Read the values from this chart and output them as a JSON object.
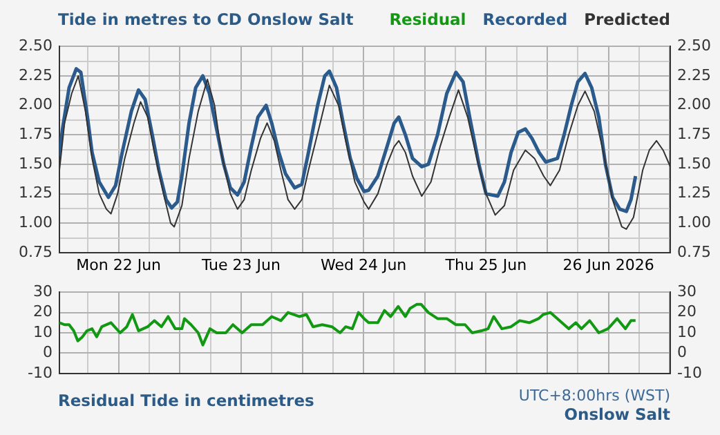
{
  "chart_data": [
    {
      "type": "line",
      "title": "Tide in metres to CD Onslow Salt",
      "legend": "top right",
      "grid": true,
      "marker": "none",
      "xlim": [
        "2026-06-22T00:24",
        "2026-06-27T00:06"
      ],
      "xticks": [
        {
          "value": "2026-06-22T06:00",
          "label": null
        },
        {
          "value": "2026-06-22T12:00",
          "label": "Mon 22 Jun"
        },
        {
          "value": "2026-06-22T18:00",
          "label": null
        },
        {
          "value": "2026-06-23T00:00",
          "label": null
        },
        {
          "value": "2026-06-23T06:00",
          "label": null
        },
        {
          "value": "2026-06-23T12:00",
          "label": "Tue 23 Jun"
        },
        {
          "value": "2026-06-23T18:00",
          "label": null
        },
        {
          "value": "2026-06-24T00:00",
          "label": null
        },
        {
          "value": "2026-06-24T06:00",
          "label": null
        },
        {
          "value": "2026-06-24T12:00",
          "label": "Wed 24 Jun"
        },
        {
          "value": "2026-06-24T18:00",
          "label": null
        },
        {
          "value": "2026-06-25T00:00",
          "label": null
        },
        {
          "value": "2026-06-25T06:00",
          "label": null
        },
        {
          "value": "2026-06-25T12:00",
          "label": "Thu 25 Jun"
        },
        {
          "value": "2026-06-25T18:00",
          "label": null
        },
        {
          "value": "2026-06-26T00:00",
          "label": null
        },
        {
          "value": "2026-06-26T06:00",
          "label": null
        },
        {
          "value": "2026-06-26T12:00",
          "label": "26 Jun 2026"
        },
        {
          "value": "2026-06-26T18:00",
          "label": null
        },
        {
          "value": "2026-06-27T00:00",
          "label": null
        }
      ],
      "ylim": [
        0.75,
        2.5
      ],
      "yticks": [
        0.75,
        {
          "value": 0.875,
          "label": null
        },
        {
          "value": 1,
          "label": "1.00"
        },
        {
          "value": 1.125,
          "label": null
        },
        1.25,
        {
          "value": 1.375,
          "label": null
        },
        {
          "value": 1.5,
          "label": "1.50"
        },
        {
          "value": 1.625,
          "label": null
        },
        1.75,
        {
          "value": 1.875,
          "label": null
        },
        {
          "value": 2,
          "label": "2.00"
        },
        {
          "value": 2.125,
          "label": null
        },
        2.25,
        {
          "value": 2.375,
          "label": null
        },
        {
          "value": 2.5,
          "label": "2.50"
        }
      ],
      "y2lim": [
        0.75,
        2.5
      ],
      "y2ticks": [
        0.75,
        {
          "value": 1,
          "label": "1.00"
        },
        1.25,
        {
          "value": 1.5,
          "label": "1.50"
        },
        1.75,
        {
          "value": 2,
          "label": "2.00"
        },
        2.25,
        {
          "value": 2.5,
          "label": "2.50"
        }
      ],
      "series": [
        {
          "name": "Recorded",
          "color": "#2b5a8c",
          "x": [
            "2026-06-22T00:24",
            "2026-06-22T01:00",
            "2026-06-22T02:18",
            "2026-06-22T03:42",
            "2026-06-22T04:36",
            "2026-06-22T05:54",
            "2026-06-22T06:48",
            "2026-06-22T08:12",
            "2026-06-22T10:00",
            "2026-06-22T11:24",
            "2026-06-22T12:42",
            "2026-06-22T14:30",
            "2026-06-22T15:54",
            "2026-06-22T17:12",
            "2026-06-22T18:36",
            "2026-06-22T19:54",
            "2026-06-22T21:18",
            "2026-06-22T22:24",
            "2026-06-22T23:30",
            "2026-06-23T00:24",
            "2026-06-23T01:48",
            "2026-06-23T03:06",
            "2026-06-23T04:30",
            "2026-06-23T05:48",
            "2026-06-23T07:12",
            "2026-06-23T08:36",
            "2026-06-23T09:54",
            "2026-06-23T11:18",
            "2026-06-23T12:36",
            "2026-06-23T14:00",
            "2026-06-23T15:18",
            "2026-06-23T16:54",
            "2026-06-23T18:00",
            "2026-06-23T19:24",
            "2026-06-23T20:42",
            "2026-06-23T22:30",
            "2026-06-23T23:54",
            "2026-06-24T01:12",
            "2026-06-24T03:00",
            "2026-06-24T04:24",
            "2026-06-24T05:18",
            "2026-06-24T06:42",
            "2026-06-24T08:00",
            "2026-06-24T09:24",
            "2026-06-24T10:42",
            "2026-06-24T12:06",
            "2026-06-24T13:00",
            "2026-06-24T14:48",
            "2026-06-24T16:36",
            "2026-06-24T18:00",
            "2026-06-24T18:54",
            "2026-06-24T20:12",
            "2026-06-24T21:36",
            "2026-06-24T23:24",
            "2026-06-25T00:42",
            "2026-06-25T02:30",
            "2026-06-25T04:18",
            "2026-06-25T06:06",
            "2026-06-25T07:30",
            "2026-06-25T08:48",
            "2026-06-25T10:36",
            "2026-06-25T12:00",
            "2026-06-25T14:18",
            "2026-06-25T15:36",
            "2026-06-25T16:54",
            "2026-06-25T18:18",
            "2026-06-25T19:42",
            "2026-06-25T21:00",
            "2026-06-25T22:24",
            "2026-06-25T23:42",
            "2026-06-26T02:00",
            "2026-06-26T03:18",
            "2026-06-26T04:42",
            "2026-06-26T06:00",
            "2026-06-26T07:24",
            "2026-06-26T08:42",
            "2026-06-26T10:06",
            "2026-06-26T11:24",
            "2026-06-26T12:48",
            "2026-06-26T14:12",
            "2026-06-26T15:30",
            "2026-06-26T16:24",
            "2026-06-26T17:18"
          ],
          "values": [
            1.57,
            1.8,
            2.15,
            2.31,
            2.28,
            1.9,
            1.6,
            1.35,
            1.22,
            1.32,
            1.6,
            1.95,
            2.13,
            2.05,
            1.75,
            1.45,
            1.2,
            1.13,
            1.18,
            1.4,
            1.85,
            2.15,
            2.25,
            2.1,
            1.8,
            1.5,
            1.3,
            1.24,
            1.35,
            1.65,
            1.9,
            2.0,
            1.85,
            1.6,
            1.42,
            1.3,
            1.33,
            1.6,
            2.0,
            2.25,
            2.29,
            2.15,
            1.85,
            1.55,
            1.38,
            1.27,
            1.28,
            1.4,
            1.65,
            1.85,
            1.9,
            1.75,
            1.55,
            1.48,
            1.5,
            1.75,
            2.1,
            2.28,
            2.2,
            1.9,
            1.5,
            1.25,
            1.23,
            1.35,
            1.6,
            1.77,
            1.8,
            1.72,
            1.6,
            1.52,
            1.55,
            1.75,
            2.0,
            2.2,
            2.27,
            2.15,
            1.9,
            1.5,
            1.22,
            1.12,
            1.1,
            1.2,
            1.4
          ]
        },
        {
          "name": "Predicted",
          "color": "#333333",
          "x": [
            "2026-06-22T00:24",
            "2026-06-22T01:24",
            "2026-06-22T02:48",
            "2026-06-22T04:06",
            "2026-06-22T05:30",
            "2026-06-22T06:48",
            "2026-06-22T08:12",
            "2026-06-22T09:36",
            "2026-06-22T10:30",
            "2026-06-22T11:48",
            "2026-06-22T13:12",
            "2026-06-22T15:00",
            "2026-06-22T16:18",
            "2026-06-22T17:42",
            "2026-06-22T19:00",
            "2026-06-22T20:48",
            "2026-06-22T22:12",
            "2026-06-22T22:54",
            "2026-06-23T00:24",
            "2026-06-23T01:48",
            "2026-06-23T03:36",
            "2026-06-23T05:24",
            "2026-06-23T06:48",
            "2026-06-23T08:06",
            "2026-06-23T09:54",
            "2026-06-23T11:18",
            "2026-06-23T12:36",
            "2026-06-23T14:00",
            "2026-06-23T15:48",
            "2026-06-23T17:06",
            "2026-06-23T18:30",
            "2026-06-23T19:48",
            "2026-06-23T21:12",
            "2026-06-23T22:30",
            "2026-06-23T23:54",
            "2026-06-24T01:12",
            "2026-06-24T03:30",
            "2026-06-24T05:18",
            "2026-06-24T07:06",
            "2026-06-24T08:30",
            "2026-06-24T10:18",
            "2026-06-24T12:06",
            "2026-06-24T13:00",
            "2026-06-24T14:48",
            "2026-06-24T16:36",
            "2026-06-24T18:00",
            "2026-06-24T18:54",
            "2026-06-24T20:12",
            "2026-06-24T21:36",
            "2026-06-24T23:24",
            "2026-06-25T01:12",
            "2026-06-25T03:00",
            "2026-06-25T04:48",
            "2026-06-25T06:36",
            "2026-06-25T08:24",
            "2026-06-25T10:12",
            "2026-06-25T12:00",
            "2026-06-25T13:48",
            "2026-06-25T15:36",
            "2026-06-25T17:24",
            "2026-06-25T19:42",
            "2026-06-25T21:30",
            "2026-06-25T23:18",
            "2026-06-26T00:36",
            "2026-06-26T02:24",
            "2026-06-26T04:12",
            "2026-06-26T06:00",
            "2026-06-26T07:24",
            "2026-06-26T09:12",
            "2026-06-26T11:00",
            "2026-06-26T12:48",
            "2026-06-26T14:36",
            "2026-06-26T15:30",
            "2026-06-26T16:54",
            "2026-06-26T18:42",
            "2026-06-26T20:00",
            "2026-06-26T21:24",
            "2026-06-26T22:42",
            "2026-06-27T00:06"
          ],
          "values": [
            1.45,
            1.85,
            2.1,
            2.25,
            1.95,
            1.55,
            1.25,
            1.12,
            1.08,
            1.25,
            1.55,
            1.85,
            2.03,
            1.9,
            1.6,
            1.25,
            1.0,
            0.97,
            1.15,
            1.55,
            1.95,
            2.22,
            2.0,
            1.6,
            1.25,
            1.12,
            1.2,
            1.45,
            1.72,
            1.85,
            1.7,
            1.45,
            1.2,
            1.12,
            1.2,
            1.45,
            1.85,
            2.17,
            2.0,
            1.7,
            1.35,
            1.18,
            1.12,
            1.25,
            1.5,
            1.65,
            1.7,
            1.6,
            1.4,
            1.23,
            1.35,
            1.65,
            1.9,
            2.13,
            1.9,
            1.55,
            1.25,
            1.07,
            1.15,
            1.45,
            1.62,
            1.55,
            1.4,
            1.32,
            1.45,
            1.75,
            2.0,
            2.12,
            1.95,
            1.6,
            1.2,
            0.97,
            0.95,
            1.05,
            1.45,
            1.62,
            1.7,
            1.62,
            1.48
          ]
        }
      ]
    },
    {
      "type": "line",
      "title": "Residual Tide in centimetres",
      "legend": "top right",
      "grid": true,
      "marker": "none",
      "tick_labels": "y",
      "annotations": [
        "UTC+8:00hrs (WST)",
        "Onslow Salt"
      ],
      "xlim": [
        "2026-06-22T00:24",
        "2026-06-27T00:06"
      ],
      "xticks": [
        {
          "value": "2026-06-22T06:00",
          "label": null
        },
        {
          "value": "2026-06-22T12:00",
          "label": null
        },
        {
          "value": "2026-06-22T18:00",
          "label": null
        },
        {
          "value": "2026-06-23T00:00",
          "label": null
        },
        {
          "value": "2026-06-23T06:00",
          "label": null
        },
        {
          "value": "2026-06-23T12:00",
          "label": null
        },
        {
          "value": "2026-06-23T18:00",
          "label": null
        },
        {
          "value": "2026-06-24T00:00",
          "label": null
        },
        {
          "value": "2026-06-24T06:00",
          "label": null
        },
        {
          "value": "2026-06-24T12:00",
          "label": null
        },
        {
          "value": "2026-06-24T18:00",
          "label": null
        },
        {
          "value": "2026-06-25T00:00",
          "label": null
        },
        {
          "value": "2026-06-25T06:00",
          "label": null
        },
        {
          "value": "2026-06-25T12:00",
          "label": null
        },
        {
          "value": "2026-06-25T18:00",
          "label": null
        },
        {
          "value": "2026-06-26T00:00",
          "label": null
        },
        {
          "value": "2026-06-26T06:00",
          "label": null
        },
        {
          "value": "2026-06-26T12:00",
          "label": null
        },
        {
          "value": "2026-06-26T18:00",
          "label": null
        },
        {
          "value": "2026-06-27T00:00",
          "label": null
        }
      ],
      "ylim": [
        -10,
        30
      ],
      "yticks": [
        -10,
        0,
        10,
        20,
        30
      ],
      "y2lim": [
        -10,
        30
      ],
      "y2ticks": [
        -10,
        0,
        10,
        20,
        30
      ],
      "series": [
        {
          "name": "Residual",
          "color": "#129812",
          "x": [
            "2026-06-22T00:24",
            "2026-06-22T01:24",
            "2026-06-22T02:18",
            "2026-06-22T03:12",
            "2026-06-22T04:00",
            "2026-06-22T04:54",
            "2026-06-22T05:48",
            "2026-06-22T06:48",
            "2026-06-22T07:42",
            "2026-06-22T08:42",
            "2026-06-22T10:30",
            "2026-06-22T12:18",
            "2026-06-22T13:36",
            "2026-06-22T14:42",
            "2026-06-22T15:54",
            "2026-06-22T17:42",
            "2026-06-22T19:00",
            "2026-06-22T20:24",
            "2026-06-22T21:42",
            "2026-06-22T23:06",
            "2026-06-23T00:24",
            "2026-06-23T00:54",
            "2026-06-23T02:12",
            "2026-06-23T03:36",
            "2026-06-23T04:30",
            "2026-06-23T05:54",
            "2026-06-23T07:12",
            "2026-06-23T09:00",
            "2026-06-23T10:24",
            "2026-06-23T12:12",
            "2026-06-23T14:00",
            "2026-06-23T16:12",
            "2026-06-23T18:00",
            "2026-06-23T19:48",
            "2026-06-23T21:12",
            "2026-06-23T23:24",
            "2026-06-24T00:48",
            "2026-06-24T02:06",
            "2026-06-24T03:54",
            "2026-06-24T05:48",
            "2026-06-24T07:24",
            "2026-06-24T08:30",
            "2026-06-24T09:48",
            "2026-06-24T11:00",
            "2026-06-24T12:06",
            "2026-06-24T13:00",
            "2026-06-24T14:48",
            "2026-06-24T16:06",
            "2026-06-24T17:18",
            "2026-06-24T18:48",
            "2026-06-24T20:12",
            "2026-06-24T21:06",
            "2026-06-24T22:24",
            "2026-06-24T23:18",
            "2026-06-25T00:42",
            "2026-06-25T02:30",
            "2026-06-25T04:18",
            "2026-06-25T06:06",
            "2026-06-25T07:54",
            "2026-06-25T09:18",
            "2026-06-25T11:06",
            "2026-06-25T12:24",
            "2026-06-25T13:30",
            "2026-06-25T15:06",
            "2026-06-25T16:54",
            "2026-06-25T18:36",
            "2026-06-25T20:30",
            "2026-06-25T22:18",
            "2026-06-25T23:12",
            "2026-06-26T00:36",
            "2026-06-26T02:24",
            "2026-06-26T04:12",
            "2026-06-26T05:36",
            "2026-06-26T06:42",
            "2026-06-26T08:18",
            "2026-06-26T10:06",
            "2026-06-26T11:54",
            "2026-06-26T13:42",
            "2026-06-26T15:18",
            "2026-06-26T16:24",
            "2026-06-26T17:18"
          ],
          "values": [
            15,
            14,
            14,
            11,
            6,
            8,
            11,
            12,
            8,
            13,
            15,
            10,
            13,
            19,
            11,
            13,
            16,
            13,
            18,
            12,
            12,
            17,
            14,
            10,
            4,
            12,
            10,
            10,
            14,
            10,
            14,
            14,
            18,
            16,
            20,
            18,
            19,
            13,
            14,
            13,
            10,
            13,
            12,
            20,
            17,
            15,
            15,
            21,
            18,
            23,
            18,
            22,
            24,
            24,
            20,
            17,
            17,
            14,
            14,
            10,
            11,
            12,
            18,
            12,
            13,
            16,
            15,
            17,
            19,
            20,
            16,
            12,
            15,
            12,
            16,
            10,
            12,
            17,
            12,
            16,
            16
          ]
        }
      ]
    }
  ]
}
